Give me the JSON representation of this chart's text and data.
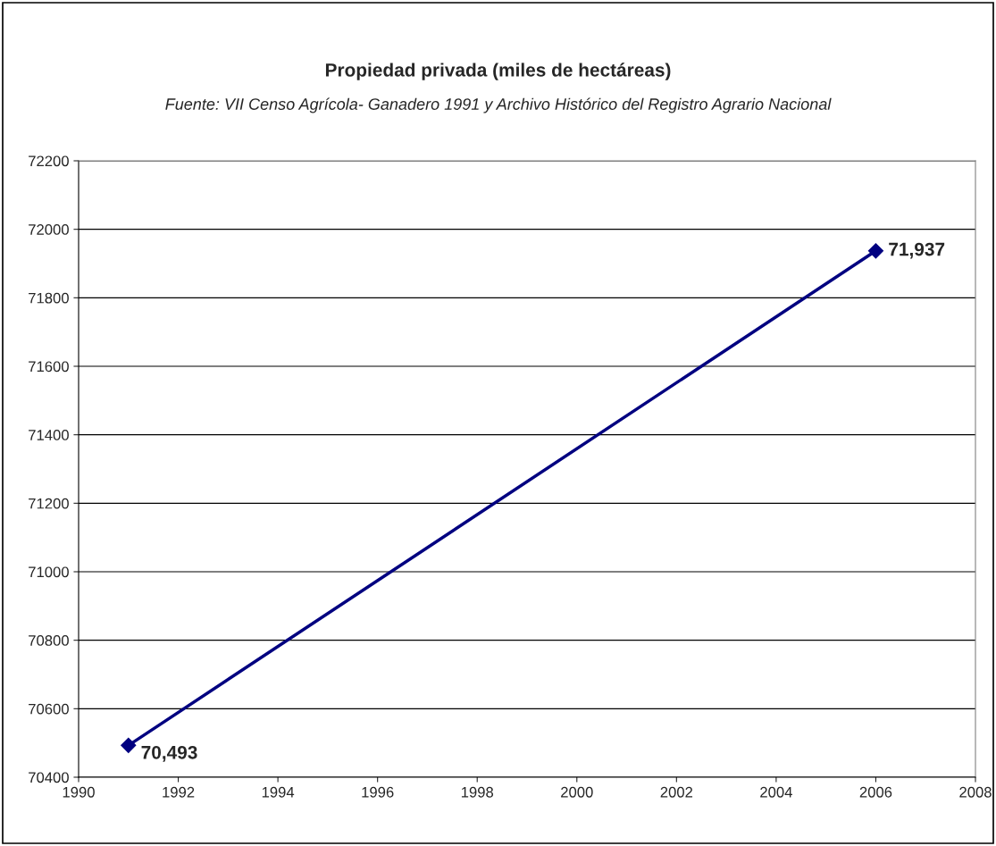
{
  "chart_data": {
    "type": "line",
    "title": "Propiedad privada (miles de hectáreas)",
    "subtitle": "Fuente: VII Censo Agrícola- Ganadero 1991 y Archivo Histórico del Registro Agrario Nacional",
    "x": [
      1991,
      2006
    ],
    "series": [
      {
        "color": "#000080",
        "values": [
          70493,
          71937
        ],
        "value_labels": [
          "70,493",
          "71,937"
        ]
      }
    ],
    "xlim": [
      1990,
      2008
    ],
    "xticks": [
      1990,
      1992,
      1994,
      1996,
      1998,
      2000,
      2002,
      2004,
      2006,
      2008
    ],
    "ylim": [
      70400,
      72200
    ],
    "yticks": [
      70400,
      70600,
      70800,
      71000,
      71200,
      71400,
      71600,
      71800,
      72000,
      72200
    ],
    "grid": "y",
    "marker": "diamond",
    "line_style": "solid"
  }
}
